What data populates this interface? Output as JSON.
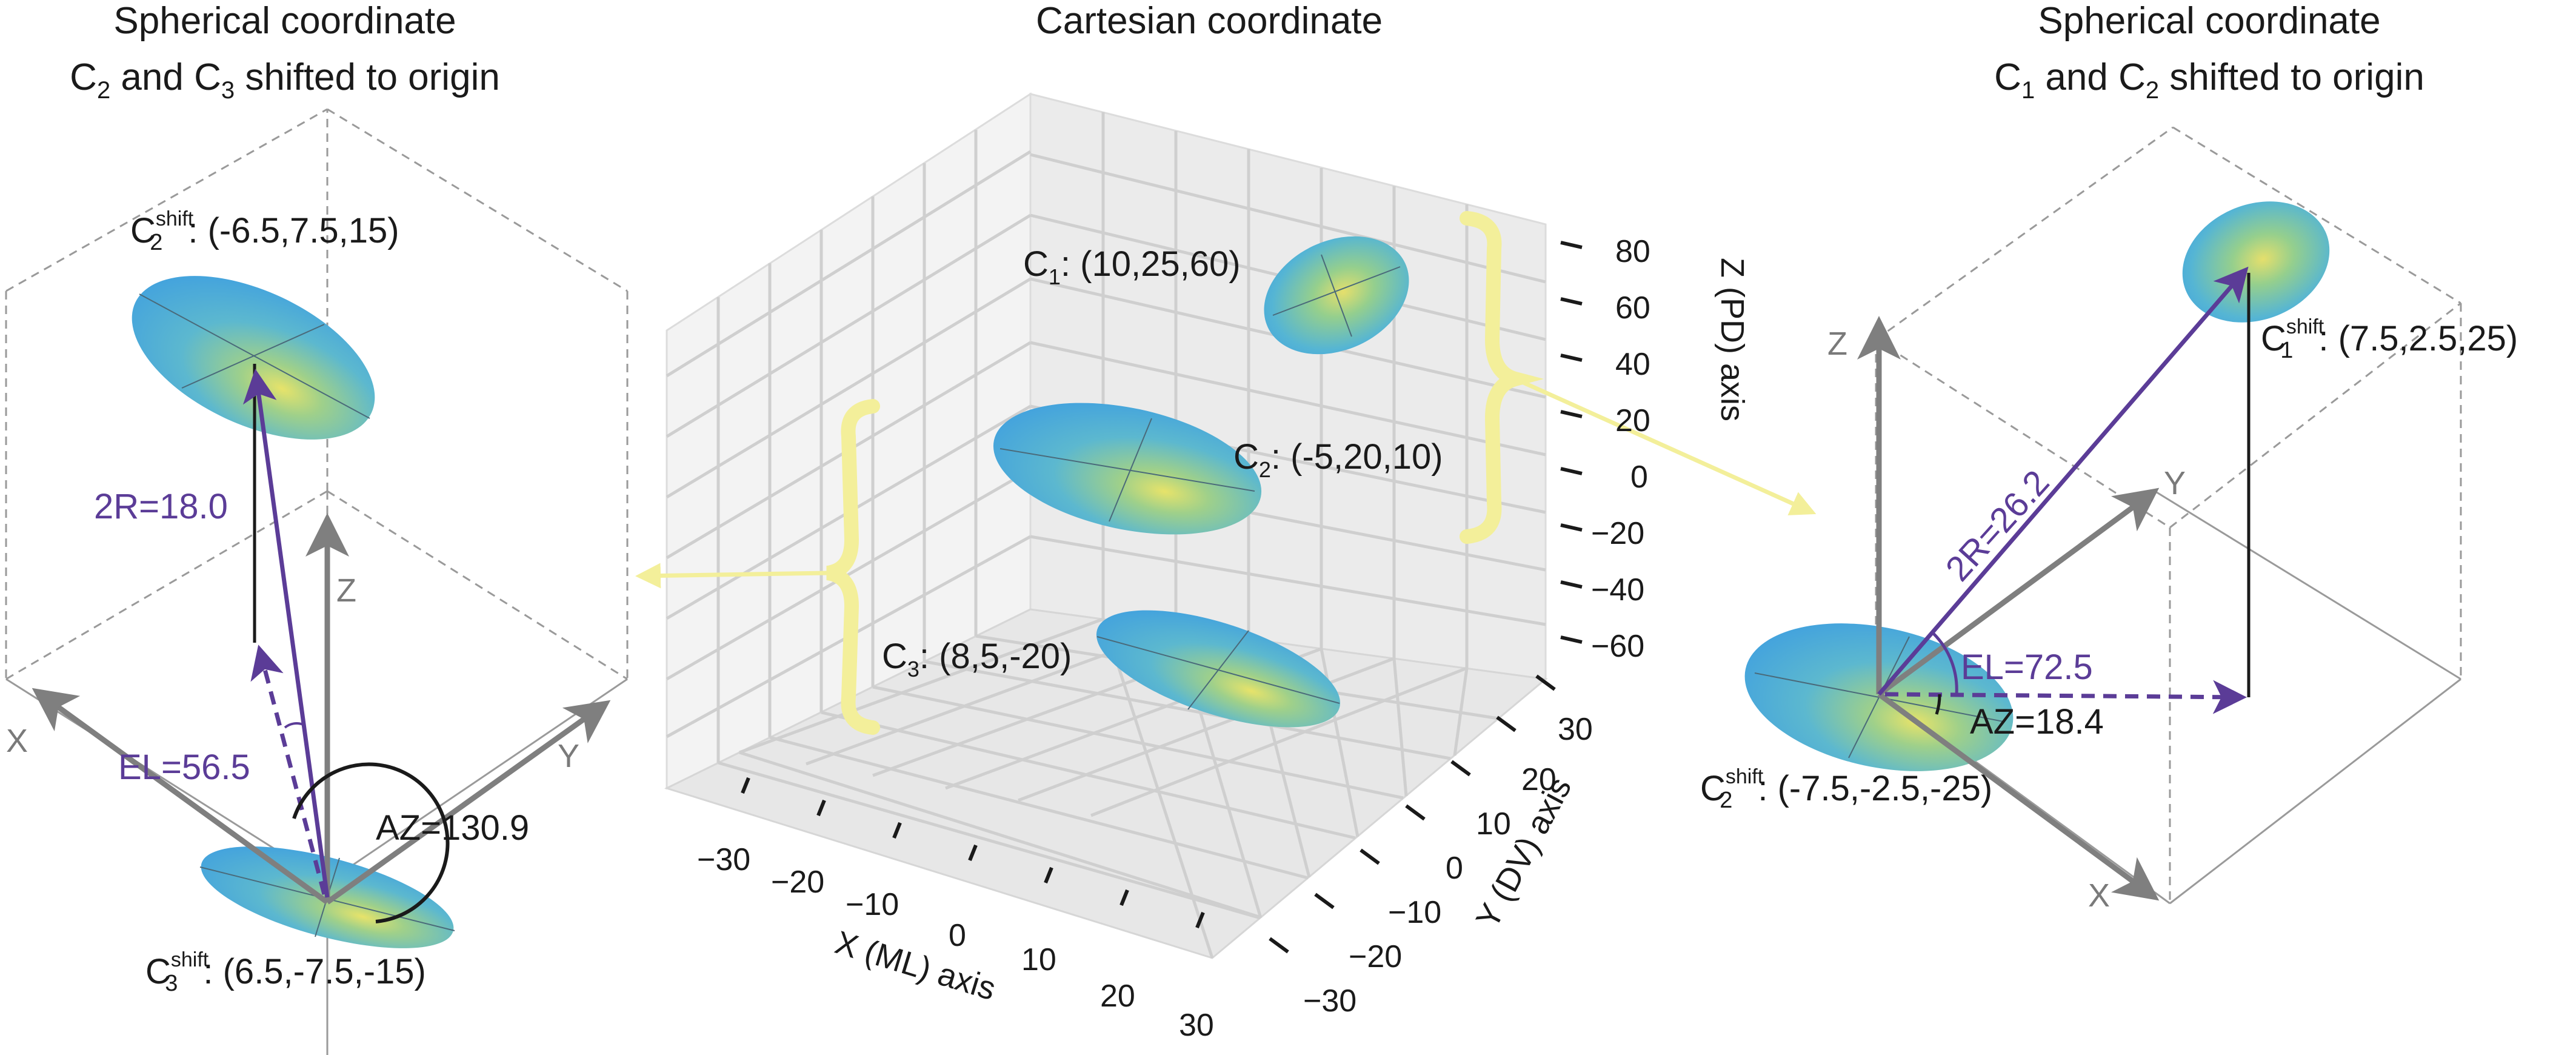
{
  "colors": {
    "purple": "#5b3c97",
    "arrow_gray": "#7f7f7f",
    "highlight_yellow": "#f3ef9a",
    "ellipsoid_blue": "#4aa9de",
    "ellipsoid_yellow": "#e6e36a"
  },
  "panels": {
    "left": {
      "title_line1": "Spherical coordinate",
      "title_line2_pre": "C",
      "title_line2_sub_a": "2",
      "title_line2_mid": " and C",
      "title_line2_sub_b": "3",
      "title_line2_post": " shifted to origin",
      "point_top": {
        "C": "C",
        "sup": "shift",
        "sub": "2",
        "coords": ": (-6.5,7.5,15)"
      },
      "point_bottom": {
        "C": "C",
        "sup": "shift",
        "sub": "3",
        "coords": ": (6.5,-7.5,-15)"
      },
      "radius_label": "2R=18.0",
      "elevation_label": "EL=56.5",
      "azimuth_label": "AZ=130.9",
      "axis_x": "X",
      "axis_y": "Y",
      "axis_z": "Z"
    },
    "center": {
      "title": "Cartesian coordinate",
      "points": [
        {
          "C": "C",
          "sub": "1",
          "coords": ": (10,25,60)"
        },
        {
          "C": "C",
          "sub": "2",
          "coords": ": (-5,20,10)"
        },
        {
          "C": "C",
          "sub": "3",
          "coords": ": (8,5,-20)"
        }
      ],
      "x_axis_label": "X (ML) axis",
      "y_axis_label": "Y (DV) axis",
      "z_axis_label": "Z (PD) axis",
      "x_ticks": [
        "−30",
        "−20",
        "−10",
        "0",
        "10",
        "20",
        "30"
      ],
      "y_ticks": [
        "−30",
        "−20",
        "−10",
        "0",
        "10",
        "20",
        "30"
      ],
      "z_ticks": [
        "80",
        "60",
        "40",
        "20",
        "0",
        "−20",
        "−40",
        "−60"
      ]
    },
    "right": {
      "title_line1": "Spherical coordinate",
      "title_line2_pre": "C",
      "title_line2_sub_a": "1",
      "title_line2_mid": " and C",
      "title_line2_sub_b": "2",
      "title_line2_post": " shifted to origin",
      "point_top": {
        "C": "C",
        "sup": "shift",
        "sub": "1",
        "coords": ": (7.5,2.5,25)"
      },
      "point_bottom": {
        "C": "C",
        "sup": "shift",
        "sub": "2",
        "coords": ": (-7.5,-2.5,-25)"
      },
      "radius_label": "2R=26.2",
      "elevation_label": "EL=72.5",
      "azimuth_label": "AZ=18.4",
      "axis_x": "X",
      "axis_y": "Y",
      "axis_z": "Z"
    }
  }
}
